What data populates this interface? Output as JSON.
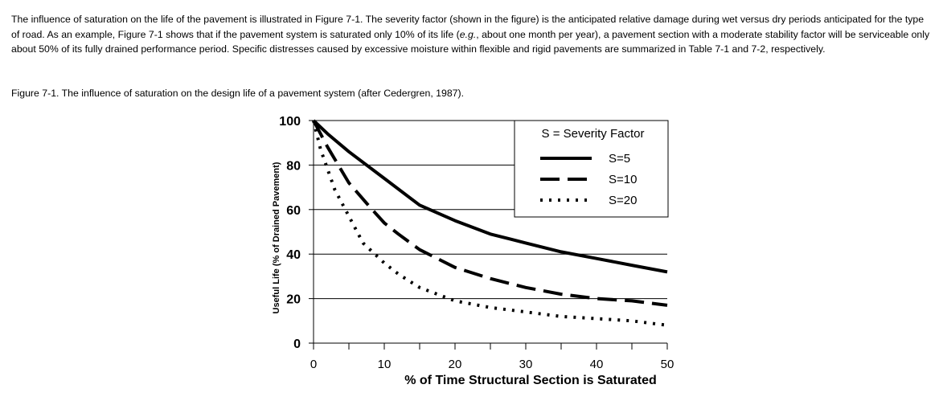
{
  "paragraph": {
    "part1": "The influence of saturation on the life of the pavement is illustrated in Figure 7-1. The severity factor (shown in the figure) is the anticipated relative damage during wet versus dry periods anticipated for the type of road. As an example, Figure 7-1 shows that if the pavement system is saturated only 10% of its life (",
    "eg": "e.g.",
    "part2": ", about one month per year), a pavement section with a moderate stability factor will be serviceable only about 50% of its fully drained performance period. Specific distresses caused by excessive moisture within flexible and rigid pavements are summarized in Table 7-1 and 7-2, respectively."
  },
  "figure_caption": "Figure 7-1. The influence of saturation on the design life of a pavement system (after Cedergren, 1987).",
  "chart_data": {
    "type": "line",
    "title": "",
    "xlabel": "% of Time Structural Section is Saturated",
    "ylabel": "Useful Life (% of Drained Pavement)",
    "xlim": [
      0,
      50
    ],
    "ylim": [
      0,
      100
    ],
    "x_ticks": [
      0,
      10,
      20,
      30,
      40,
      50
    ],
    "y_ticks": [
      0,
      20,
      40,
      60,
      80,
      100
    ],
    "grid": "horizontal",
    "legend_title": "S = Severity Factor",
    "legend_position": "top-right",
    "series": [
      {
        "name": "S=5",
        "style": "solid",
        "x": [
          0,
          2,
          5,
          10,
          15,
          20,
          25,
          30,
          35,
          40,
          45,
          50
        ],
        "y": [
          100,
          94,
          86,
          74,
          62,
          55,
          49,
          45,
          41,
          38,
          35,
          32
        ]
      },
      {
        "name": "S=10",
        "style": "dashed",
        "x": [
          0,
          2,
          5,
          8,
          10,
          12,
          15,
          20,
          25,
          30,
          35,
          40,
          45,
          50
        ],
        "y": [
          100,
          88,
          72,
          61,
          54,
          49,
          42,
          34,
          29,
          25,
          22,
          20,
          19,
          17
        ]
      },
      {
        "name": "S=20",
        "style": "dotted",
        "x": [
          0,
          1,
          2,
          3,
          5,
          7,
          10,
          12,
          15,
          20,
          25,
          30,
          35,
          40,
          45,
          50
        ],
        "y": [
          100,
          87,
          78,
          69,
          57,
          45,
          36,
          31,
          25,
          19,
          16,
          14,
          12,
          11,
          10,
          8
        ]
      }
    ]
  }
}
